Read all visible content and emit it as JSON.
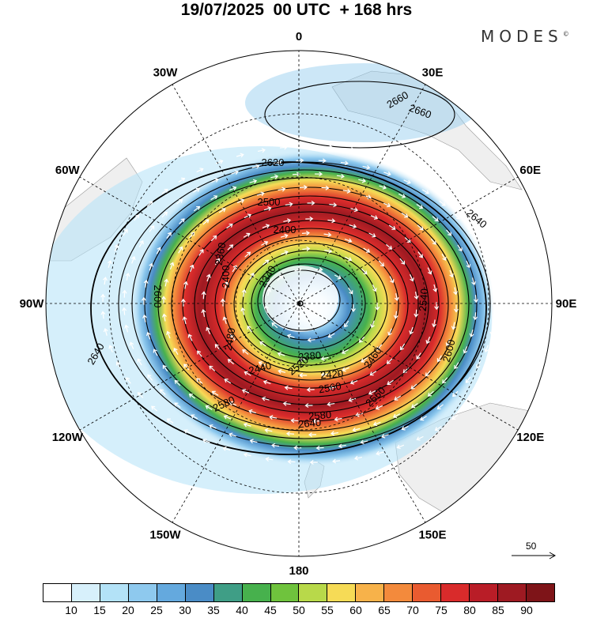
{
  "header": {
    "title": "19/07/2025  00 UTC  + 168 hrs",
    "brand": "MODES",
    "brand_mark": "©"
  },
  "map": {
    "projection": "south-polar-stereographic",
    "longitude_labels": [
      "0",
      "30E",
      "60E",
      "90E",
      "120E",
      "150E",
      "180",
      "150W",
      "120W",
      "90W",
      "60W",
      "30W"
    ],
    "contour_labels": [
      "2660",
      "2620",
      "2640",
      "2640",
      "2640",
      "2600",
      "2600",
      "2580",
      "2580",
      "2560",
      "2560",
      "2540",
      "2520",
      "2500",
      "2480",
      "2460",
      "2440",
      "2420",
      "2400",
      "2400",
      "2380",
      "2360",
      "2340",
      "2660"
    ],
    "field_description_colors": {
      "land": "#efefef",
      "ocean": "#ffffff",
      "contour": "#000000",
      "vector": "#ffffff"
    }
  },
  "vector_scale": {
    "label": "50"
  },
  "colorbar": {
    "colors": [
      "#ffffff",
      "#d7f0fb",
      "#b3e2f7",
      "#8ec9ee",
      "#64a9de",
      "#4a8cc6",
      "#3f9e86",
      "#47b14d",
      "#6fc33d",
      "#b8d94a",
      "#f6db56",
      "#f7b24a",
      "#f38a3c",
      "#e95b30",
      "#d92b2b",
      "#b91d27",
      "#9e1a22",
      "#7e1418"
    ],
    "tick_labels": [
      "10",
      "15",
      "20",
      "25",
      "30",
      "35",
      "40",
      "45",
      "50",
      "55",
      "60",
      "65",
      "70",
      "75",
      "80",
      "85",
      "90"
    ]
  }
}
